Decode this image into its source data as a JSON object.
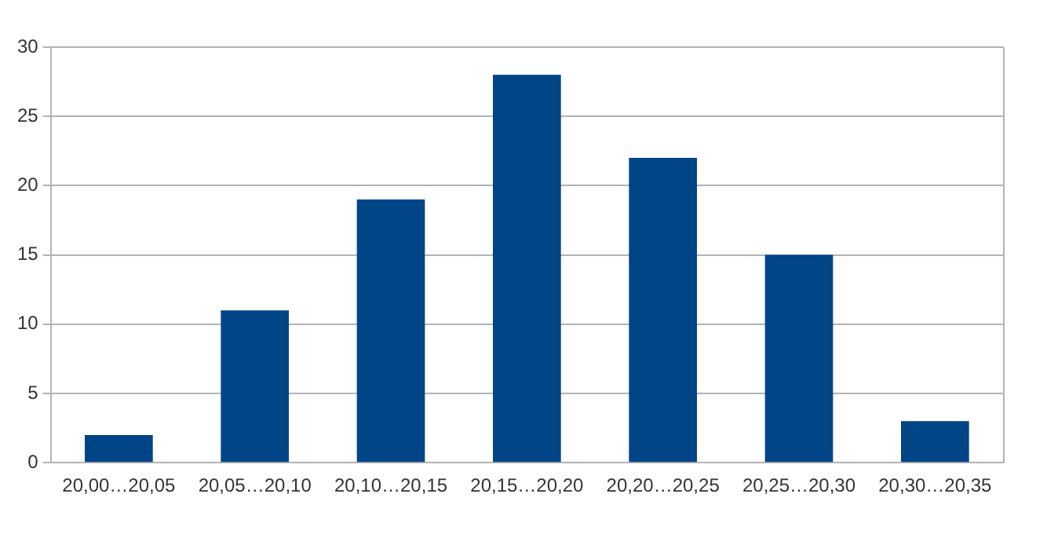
{
  "chart_data": {
    "type": "bar",
    "categories": [
      "20,00…20,05",
      "20,05…20,10",
      "20,10…20,15",
      "20,15…20,20",
      "20,20…20,25",
      "20,25…20,30",
      "20,30…20,35"
    ],
    "values": [
      2,
      11,
      19,
      28,
      22,
      15,
      3
    ],
    "color": "#004586",
    "ylim": [
      0,
      30
    ],
    "yticks": [
      0,
      5,
      10,
      15,
      20,
      25,
      30
    ],
    "grid": "y",
    "legend": false
  }
}
